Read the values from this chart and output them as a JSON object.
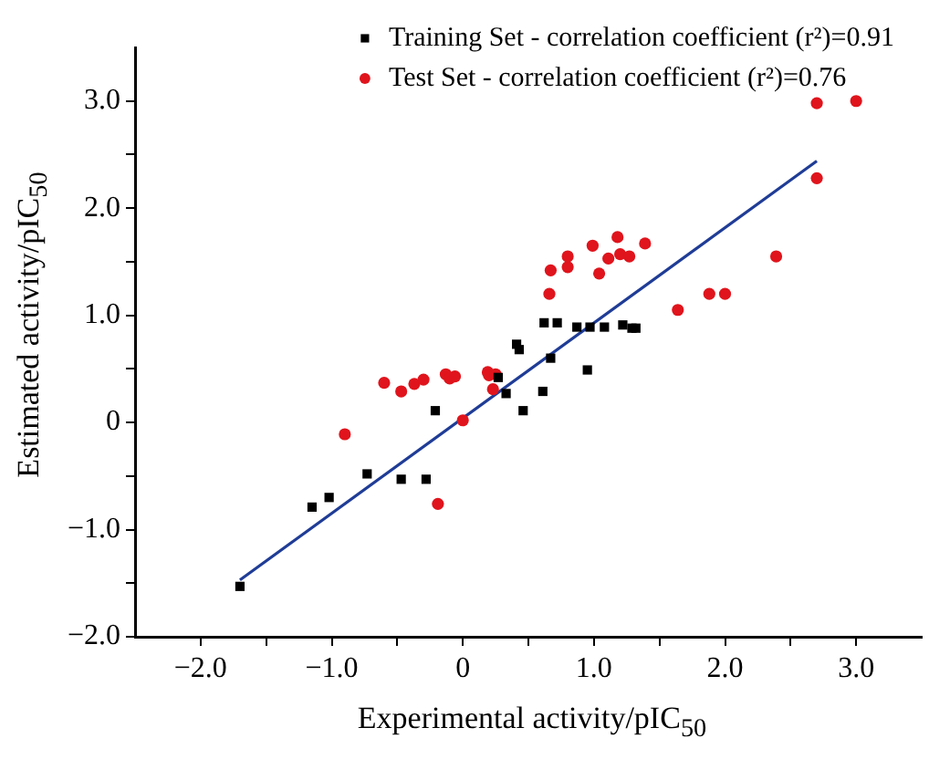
{
  "chart_data": {
    "type": "scatter",
    "xlabel": "Experimental activity/pIC$_{50}$",
    "ylabel": "Estimated activity/pIC$_{50}$",
    "xlim": [
      -2.5,
      3.5
    ],
    "ylim": [
      -2,
      3.5
    ],
    "xticks": [
      {
        "value": -2,
        "label": "−2.0"
      },
      {
        "value": -1.5,
        "label": null
      },
      {
        "value": -1,
        "label": "−1.0"
      },
      {
        "value": -0.5,
        "label": null
      },
      0,
      {
        "value": 0.5,
        "label": null
      },
      {
        "value": 1,
        "label": "1.0"
      },
      {
        "value": 1.5,
        "label": null
      },
      {
        "value": 2,
        "label": "2.0"
      },
      {
        "value": 2.5,
        "label": null
      },
      {
        "value": 3,
        "label": "3.0"
      }
    ],
    "yticks": [
      {
        "value": -2,
        "label": "−2.0"
      },
      {
        "value": -1.5,
        "label": null
      },
      {
        "value": -1,
        "label": "−1.0"
      },
      {
        "value": -0.5,
        "label": null
      },
      0,
      {
        "value": 0.5,
        "label": null
      },
      {
        "value": 1,
        "label": "1.0"
      },
      {
        "value": 1.5,
        "label": null
      },
      {
        "value": 2,
        "label": "2.0"
      },
      {
        "value": 2.5,
        "label": null
      },
      {
        "value": 3,
        "label": "3.0"
      }
    ],
    "grid": false,
    "legend": "top right",
    "series": [
      {
        "name": "Training Set - correlation coefficient (r²)=0.91",
        "color": "#000000",
        "marker": "square",
        "x": [
          0.62,
          0.72,
          0.87,
          0.97,
          1.08,
          1.22,
          1.29,
          1.32,
          0.95,
          0.67,
          0.41,
          0.43,
          0.27,
          0.33,
          0.61,
          0.46,
          -0.21,
          -0.73,
          -0.47,
          -0.28,
          -1.02,
          -1.15,
          -1.7
        ],
        "values": [
          0.93,
          0.93,
          0.89,
          0.89,
          0.89,
          0.91,
          0.88,
          0.88,
          0.49,
          0.6,
          0.73,
          0.68,
          0.42,
          0.27,
          0.29,
          0.11,
          0.11,
          -0.48,
          -0.53,
          -0.53,
          -0.7,
          -0.79,
          -1.53
        ]
      },
      {
        "name": "Test Set - correlation coefficient (r²)=0.76",
        "color": "#e0141c",
        "marker": "circle",
        "x": [
          2.7,
          3.0,
          2.7,
          2.39,
          1.88,
          2.0,
          1.64,
          0.66,
          0.67,
          0.8,
          0.8,
          0.99,
          1.04,
          1.11,
          1.18,
          1.2,
          1.27,
          1.39,
          -0.9,
          -0.6,
          -0.47,
          -0.37,
          -0.3,
          -0.13,
          -0.1,
          -0.06,
          0.19,
          0.2,
          0.25,
          0.23,
          0.0,
          -0.19
        ],
        "values": [
          2.98,
          3.0,
          2.28,
          1.55,
          1.2,
          1.2,
          1.05,
          1.2,
          1.42,
          1.45,
          1.55,
          1.65,
          1.39,
          1.53,
          1.73,
          1.57,
          1.55,
          1.67,
          -0.11,
          0.37,
          0.29,
          0.36,
          0.4,
          0.45,
          0.41,
          0.43,
          0.47,
          0.44,
          0.45,
          0.31,
          0.02,
          -0.76
        ]
      },
      {
        "type": "line",
        "color": "#1f3c96",
        "marker": "none",
        "line_style": "solid",
        "x": [
          -1.7,
          2.7
        ],
        "values": [
          -1.47,
          2.44
        ]
      }
    ]
  }
}
